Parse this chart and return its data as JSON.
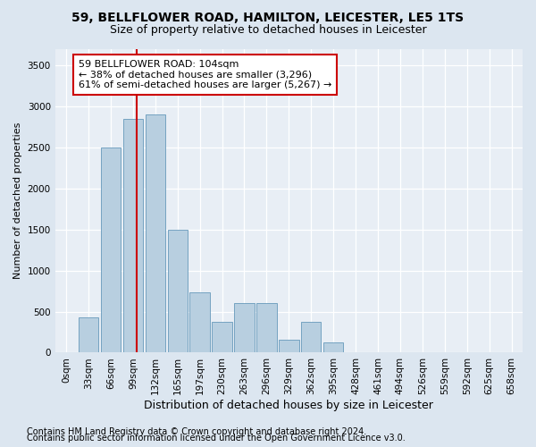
{
  "title1": "59, BELLFLOWER ROAD, HAMILTON, LEICESTER, LE5 1TS",
  "title2": "Size of property relative to detached houses in Leicester",
  "xlabel": "Distribution of detached houses by size in Leicester",
  "ylabel": "Number of detached properties",
  "footer1": "Contains HM Land Registry data © Crown copyright and database right 2024.",
  "footer2": "Contains public sector information licensed under the Open Government Licence v3.0.",
  "bar_labels": [
    "0sqm",
    "33sqm",
    "66sqm",
    "99sqm",
    "132sqm",
    "165sqm",
    "197sqm",
    "230sqm",
    "263sqm",
    "296sqm",
    "329sqm",
    "362sqm",
    "395sqm",
    "428sqm",
    "461sqm",
    "494sqm",
    "526sqm",
    "559sqm",
    "592sqm",
    "625sqm",
    "658sqm"
  ],
  "bar_values": [
    10,
    430,
    2500,
    2850,
    2900,
    1500,
    730,
    380,
    600,
    600,
    160,
    380,
    130,
    0,
    0,
    0,
    0,
    0,
    0,
    0,
    0
  ],
  "bar_color": "#b8cfe0",
  "bar_edge_color": "#6699bb",
  "property_label": "59 BELLFLOWER ROAD: 104sqm",
  "annotation_line1": "← 38% of detached houses are smaller (3,296)",
  "annotation_line2": "61% of semi-detached houses are larger (5,267) →",
  "vline_color": "#cc0000",
  "annotation_box_color": "#ffffff",
  "annotation_box_edge": "#cc0000",
  "ylim": [
    0,
    3700
  ],
  "yticks": [
    0,
    500,
    1000,
    1500,
    2000,
    2500,
    3000,
    3500
  ],
  "bg_color": "#dce6f0",
  "plot_bg_color": "#e8eef5",
  "title1_fontsize": 10,
  "title2_fontsize": 9,
  "xlabel_fontsize": 9,
  "ylabel_fontsize": 8,
  "tick_fontsize": 7.5,
  "footer_fontsize": 7,
  "annotation_fontsize": 8
}
